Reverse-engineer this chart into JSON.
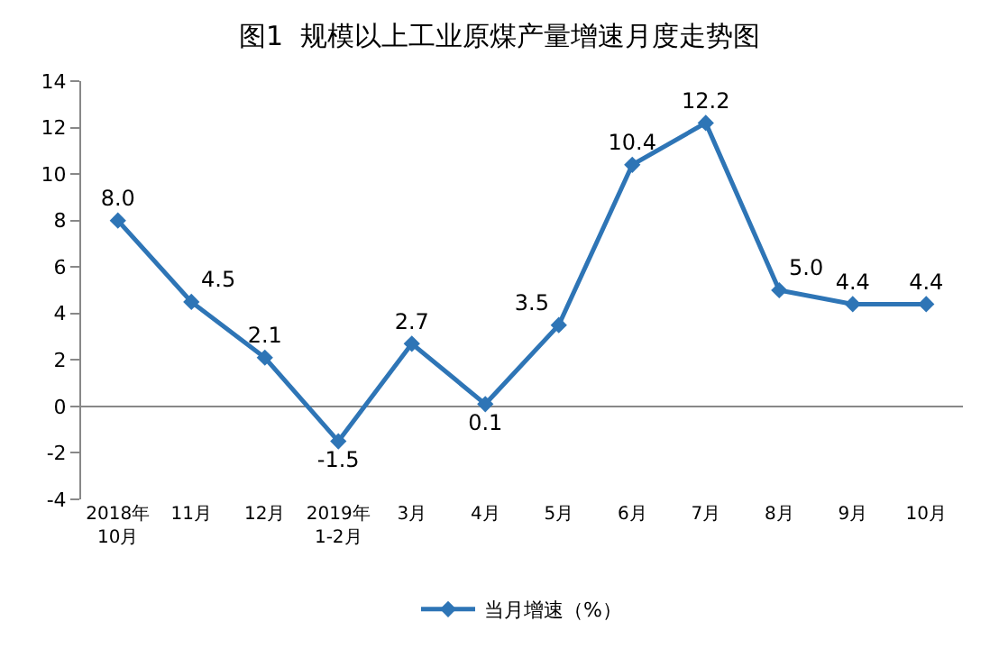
{
  "chart_data": {
    "type": "line",
    "title": "图1  规模以上工业原煤产量增速月度走势图",
    "categories": [
      "2018年\n10月",
      "11月",
      "12月",
      "2019年\n1-2月",
      "3月",
      "4月",
      "5月",
      "6月",
      "7月",
      "8月",
      "9月",
      "10月"
    ],
    "series": [
      {
        "name": "当月增速（%）",
        "color": "#2e75b6",
        "values": [
          8.0,
          4.5,
          2.1,
          -1.5,
          2.7,
          0.1,
          3.5,
          10.4,
          12.2,
          5.0,
          4.4,
          4.4
        ],
        "value_labels": [
          "8.0",
          "4.5",
          "2.1",
          "-1.5",
          "2.7",
          "0.1",
          "3.5",
          "10.4",
          "12.2",
          "5.0",
          "4.4",
          "4.4"
        ]
      }
    ],
    "ylim": [
      -4,
      14
    ],
    "yticks": [
      -4,
      -2,
      0,
      2,
      4,
      6,
      8,
      10,
      12,
      14
    ],
    "ref_lines": [
      {
        "axis": "y",
        "value": 0,
        "color": "#888888"
      }
    ],
    "legend": "bottom",
    "marker": "diamond",
    "line_style": "solid",
    "grid": false
  }
}
